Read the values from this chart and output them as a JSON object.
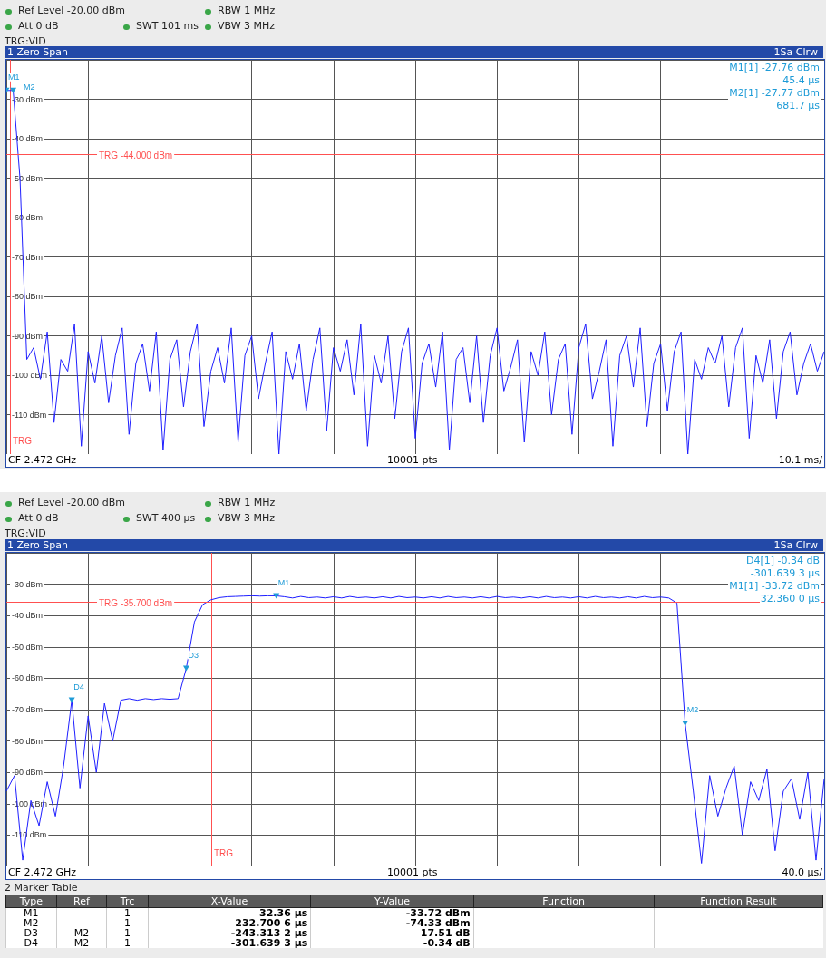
{
  "chart_data": [
    {
      "type": "line",
      "title": "1 Zero Span",
      "annotations": [
        "Ref Level -20.00 dBm",
        "Att 0 dB",
        "SWT 101 ms",
        "RBW 1 MHz",
        "VBW 3 MHz",
        "TRG:VID",
        "1Sa Clrw",
        "M1[1] -27.76 dBm",
        "45.4 µs",
        "M2[1] -27.77 dBm",
        "681.7 µs",
        "CF 2.472 GHz",
        "10001 pts",
        "10.1 ms/",
        "TRG"
      ],
      "categories": [
        null,
        null,
        null,
        null,
        null,
        null,
        null,
        null,
        null,
        null,
        null,
        null,
        null,
        null,
        null,
        null,
        null,
        null,
        null,
        null,
        null,
        null,
        null,
        null,
        null,
        null,
        null,
        null,
        null,
        null,
        null,
        null,
        null,
        null,
        null,
        null,
        null,
        null,
        null,
        null,
        null,
        null,
        null,
        null,
        null,
        null,
        null,
        null,
        null,
        null,
        null,
        null,
        null,
        null,
        null,
        null,
        null,
        null,
        null,
        null,
        null,
        null,
        null,
        null,
        null,
        null,
        null,
        null,
        null,
        null,
        null,
        null,
        null,
        null,
        null,
        null,
        null,
        null,
        null,
        null,
        null,
        null,
        null,
        null,
        null,
        null,
        null,
        null,
        null,
        null,
        null,
        null,
        null,
        null,
        null,
        null,
        null,
        null,
        null,
        null,
        null,
        null,
        null,
        null,
        null,
        null,
        null,
        null,
        null,
        null,
        null,
        null,
        null,
        null,
        null,
        null,
        null,
        null,
        null,
        null,
        null
      ],
      "series": [
        {
          "color": "#1f1fff",
          "values": [
            -27.76,
            -27.77,
            -50,
            -96,
            -93,
            -101,
            -89,
            -112,
            -96,
            -99,
            -87,
            -118,
            -94,
            -102,
            -90,
            -107,
            -95,
            -88,
            -115,
            -97,
            -92,
            -104,
            -89,
            -119,
            -96,
            -91,
            -108,
            -94,
            -87,
            -113,
            -99,
            -93,
            -102,
            -88,
            -117,
            -95,
            -90,
            -106,
            -97,
            -89,
            -120,
            -94,
            -101,
            -92,
            -109,
            -96,
            -88,
            -114,
            -93,
            -99,
            -91,
            -105,
            -87,
            -118,
            -95,
            -102,
            -90,
            -111,
            -94,
            -88,
            -116,
            -97,
            -92,
            -103,
            -89,
            -119,
            -96,
            -93,
            -107,
            -90,
            -112,
            -95,
            -88,
            -104,
            -98,
            -91,
            -117,
            -94,
            -100,
            -89,
            -110,
            -96,
            -92,
            -115,
            -93,
            -87,
            -106,
            -99,
            -91,
            -118,
            -95,
            -90,
            -103,
            -88,
            -113,
            -97,
            -92,
            -109,
            -94,
            -89,
            -120,
            -96,
            -101,
            -93,
            -97,
            -90,
            -108,
            -93,
            -88,
            -116,
            -95,
            -102,
            -91,
            -111,
            -94,
            -89,
            -105,
            -97,
            -92,
            -99,
            -94
          ],
          "value_labels": [
            "M1",
            "M2",
            null,
            null,
            null,
            null,
            null,
            null,
            null,
            null,
            null,
            null,
            null,
            null,
            null,
            null,
            null,
            null,
            null,
            null,
            null,
            null,
            null,
            null,
            null,
            null,
            null,
            null,
            null,
            null,
            null,
            null,
            null,
            null,
            null,
            null,
            null,
            null,
            null,
            null,
            null,
            null,
            null,
            null,
            null,
            null,
            null,
            null,
            null,
            null,
            null,
            null,
            null,
            null,
            null,
            null,
            null,
            null,
            null,
            null,
            null,
            null,
            null,
            null,
            null,
            null,
            null,
            null,
            null,
            null,
            null,
            null,
            null,
            null,
            null,
            null,
            null,
            null,
            null,
            null,
            null,
            null,
            null,
            null,
            null,
            null,
            null,
            null,
            null,
            null,
            null,
            null,
            null,
            null,
            null,
            null,
            null,
            null,
            null,
            null,
            null,
            null,
            null,
            null,
            null,
            null,
            null,
            null,
            null,
            null,
            null,
            null,
            null,
            null,
            null,
            null,
            null,
            null,
            null,
            null,
            null
          ]
        }
      ],
      "ylim": [
        -120,
        -20
      ],
      "yticks": [
        {
          "value": -20,
          "label": null
        },
        {
          "value": -30,
          "label": "-30 dBm"
        },
        {
          "value": -40,
          "label": "-40 dBm"
        },
        {
          "value": -50,
          "label": "-50 dBm"
        },
        {
          "value": -60,
          "label": "-60 dBm"
        },
        {
          "value": -70,
          "label": "-70 dBm"
        },
        {
          "value": -80,
          "label": "-80 dBm"
        },
        {
          "value": -90,
          "label": "-90 dBm"
        },
        {
          "value": -100,
          "label": "-100 dBm"
        },
        {
          "value": -110,
          "label": "-110 dBm"
        },
        {
          "value": -120,
          "label": null
        }
      ],
      "ref_lines": [
        {
          "axis": "y",
          "value": -44,
          "label": "TRG -44.000 dBm",
          "color": "#ff5050"
        }
      ],
      "grid": true,
      "tick_labels": "y",
      "line_style": "solid"
    },
    {
      "type": "line",
      "title": "1 Zero Span",
      "annotations": [
        "Ref Level -20.00 dBm",
        "Att 0 dB",
        "SWT 400 µs",
        "RBW 1 MHz",
        "VBW 3 MHz",
        "TRG:VID",
        "1Sa Clrw",
        "D4[1] -0.34 dB",
        "-301.639 3 µs",
        "M1[1] -33.72 dBm",
        "32.360 0 µs",
        "CF 2.472 GHz",
        "10001 pts",
        "40.0 µs/",
        "TRG"
      ],
      "categories": [
        null,
        null,
        null,
        null,
        null,
        null,
        null,
        null,
        null,
        null,
        null,
        null,
        null,
        null,
        null,
        null,
        null,
        null,
        null,
        null,
        null,
        null,
        null,
        null,
        null,
        null,
        null,
        null,
        null,
        null,
        null,
        null,
        null,
        null,
        null,
        null,
        null,
        null,
        null,
        null,
        null,
        null,
        null,
        null,
        null,
        null,
        null,
        null,
        null,
        null,
        null,
        null,
        null,
        null,
        null,
        null,
        null,
        null,
        null,
        null,
        null,
        null,
        null,
        null,
        null,
        null,
        null,
        null,
        null,
        null,
        null,
        null,
        null,
        null,
        null,
        null,
        null,
        null,
        null,
        null,
        null,
        null,
        null,
        null,
        null,
        null,
        null,
        null,
        null,
        null,
        null,
        null,
        null,
        null,
        null,
        null,
        null,
        null,
        null,
        null,
        null
      ],
      "series": [
        {
          "color": "#1f1fff",
          "values": [
            -96,
            -91,
            -118,
            -99,
            -107,
            -93,
            -104,
            -88,
            -67,
            -95,
            -72,
            -90,
            -68,
            -80,
            -67,
            -66.5,
            -67,
            -66.5,
            -66.8,
            -66.5,
            -66.7,
            -66.5,
            -56.82,
            -42,
            -36.5,
            -35,
            -34.3,
            -34,
            -33.9,
            -33.8,
            -33.7,
            -33.8,
            -33.7,
            -33.72,
            -34,
            -34.4,
            -33.9,
            -34.3,
            -34.1,
            -34.4,
            -34,
            -34.4,
            -33.9,
            -34.3,
            -34.1,
            -34.4,
            -34,
            -34.4,
            -33.9,
            -34.3,
            -34.1,
            -34.4,
            -34,
            -34.4,
            -33.9,
            -34.3,
            -34.1,
            -34.4,
            -34,
            -34.4,
            -33.9,
            -34.3,
            -34.1,
            -34.4,
            -34,
            -34.4,
            -33.9,
            -34.3,
            -34.1,
            -34.4,
            -34,
            -34.4,
            -33.9,
            -34.3,
            -34.1,
            -34.4,
            -34,
            -34.4,
            -33.9,
            -34.3,
            -34.1,
            -34.4,
            -36,
            -74.33,
            -96,
            -119,
            -91,
            -104,
            -95,
            -88,
            -110,
            -93,
            -99,
            -89,
            -115,
            -96,
            -92,
            -105,
            -90,
            -118,
            -92
          ],
          "value_labels": [
            null,
            null,
            null,
            null,
            null,
            null,
            null,
            null,
            "D4",
            null,
            null,
            null,
            null,
            null,
            null,
            null,
            null,
            null,
            null,
            null,
            null,
            null,
            "D3",
            null,
            null,
            null,
            null,
            null,
            null,
            null,
            null,
            null,
            null,
            "M1",
            null,
            null,
            null,
            null,
            null,
            null,
            null,
            null,
            null,
            null,
            null,
            null,
            null,
            null,
            null,
            null,
            null,
            null,
            null,
            null,
            null,
            null,
            null,
            null,
            null,
            null,
            null,
            null,
            null,
            null,
            null,
            null,
            null,
            null,
            null,
            null,
            null,
            null,
            null,
            null,
            null,
            null,
            null,
            null,
            null,
            null,
            null,
            null,
            null,
            "M2",
            null,
            null,
            null,
            null,
            null,
            null,
            null,
            null,
            null,
            null,
            null,
            null,
            null,
            null,
            null,
            null,
            null
          ]
        }
      ],
      "ylim": [
        -120,
        -20
      ],
      "yticks": [
        {
          "value": -20,
          "label": null
        },
        {
          "value": -30,
          "label": "-30 dBm"
        },
        {
          "value": -40,
          "label": "-40 dBm"
        },
        {
          "value": -50,
          "label": "-50 dBm"
        },
        {
          "value": -60,
          "label": "-60 dBm"
        },
        {
          "value": -70,
          "label": "-70 dBm"
        },
        {
          "value": -80,
          "label": "-80 dBm"
        },
        {
          "value": -90,
          "label": "-90 dBm"
        },
        {
          "value": -100,
          "label": "-100 dBm"
        },
        {
          "value": -110,
          "label": "-110 dBm"
        },
        {
          "value": -120,
          "label": null
        }
      ],
      "ref_lines": [
        {
          "axis": "y",
          "value": -35.7,
          "label": "TRG -35.700 dBm",
          "color": "#ff5050"
        }
      ],
      "grid": true,
      "tick_labels": "y",
      "line_style": "solid"
    },
    {
      "type": "other",
      "title": "2 Marker Table",
      "annotations": [
        "Type",
        "Ref",
        "Trc",
        "X-Value",
        "Y-Value",
        "Function",
        "Function Result",
        "M1",
        null,
        "1",
        "32.36 µs",
        "-33.72 dBm",
        null,
        null,
        "M2",
        null,
        "1",
        "232.700 6 µs",
        "-74.33 dBm",
        null,
        null,
        "D3",
        "M2",
        "1",
        "-243.313 2 µs",
        "17.51 dB",
        null,
        null,
        "D4",
        "M2",
        "1",
        "-301.639 3 µs",
        "-0.34 dB",
        null,
        null
      ]
    }
  ]
}
